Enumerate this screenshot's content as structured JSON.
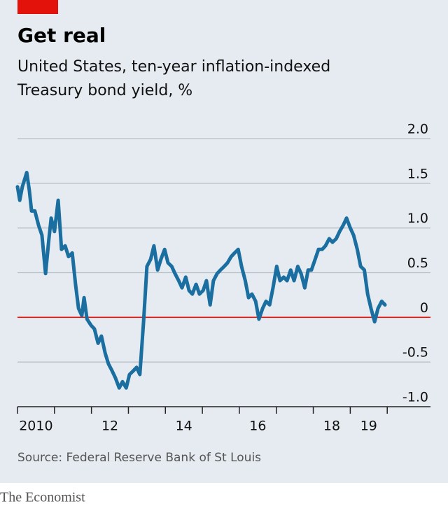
{
  "chart_data": {
    "type": "line",
    "title": "Get real",
    "subtitle": [
      "United States, ten-year inflation-indexed",
      "Treasury bond yield, %"
    ],
    "source": "Source: Federal Reserve Bank of St Louis",
    "brand": "The Economist",
    "xlim": [
      2010,
      2021.17
    ],
    "ylim": [
      -1.0,
      2.0
    ],
    "yticks": [
      {
        "value": 2,
        "label": "2.0"
      },
      1.5,
      {
        "value": 1,
        "label": "1.0"
      },
      0.5,
      0,
      -0.5,
      {
        "value": -1,
        "label": "-1.0"
      }
    ],
    "xticks": [
      2010,
      2011,
      2012,
      2013,
      2014,
      2015,
      2016,
      2017,
      2018,
      2019,
      2020
    ],
    "xtick_labels": [
      {
        "value": 2010.5,
        "label": "2010"
      },
      {
        "value": 2012.5,
        "label": "12"
      },
      {
        "value": 2014.5,
        "label": "14"
      },
      {
        "value": 2016.5,
        "label": "16"
      },
      {
        "value": 2018.5,
        "label": "18"
      },
      {
        "value": 2019.5,
        "label": "19"
      }
    ],
    "grid": true,
    "zero_line_color": "#e3120b",
    "x": [
      2010.0,
      2010.06,
      2010.13,
      2010.25,
      2010.32,
      2010.38,
      2010.47,
      2010.57,
      2010.66,
      2010.76,
      2010.85,
      2010.91,
      2011.0,
      2011.1,
      2011.19,
      2011.29,
      2011.38,
      2011.48,
      2011.57,
      2011.65,
      2011.74,
      2011.8,
      2011.88,
      2011.99,
      2012.08,
      2012.18,
      2012.27,
      2012.37,
      2012.46,
      2012.56,
      2012.65,
      2012.75,
      2012.84,
      2012.94,
      2013.03,
      2013.13,
      2013.22,
      2013.31,
      2013.41,
      2013.5,
      2013.6,
      2013.69,
      2013.79,
      2013.88,
      2013.98,
      2014.07,
      2014.17,
      2014.26,
      2014.36,
      2014.45,
      2014.55,
      2014.64,
      2014.73,
      2014.83,
      2014.92,
      2015.02,
      2015.11,
      2015.21,
      2015.3,
      2015.4,
      2015.49,
      2015.59,
      2015.68,
      2015.78,
      2015.87,
      2015.97,
      2016.06,
      2016.16,
      2016.25,
      2016.34,
      2016.44,
      2016.53,
      2016.63,
      2016.72,
      2016.82,
      2016.91,
      2017.01,
      2017.1,
      2017.2,
      2017.29,
      2017.39,
      2017.48,
      2017.58,
      2017.67,
      2017.77,
      2017.86,
      2017.95,
      2018.05,
      2018.14,
      2018.24,
      2018.33,
      2018.43,
      2018.52,
      2018.62,
      2018.71,
      2018.81,
      2018.9,
      2019.0,
      2019.09,
      2019.19,
      2019.28,
      2019.38,
      2019.47,
      2019.56,
      2019.66,
      2019.75,
      2019.85,
      2019.94
    ],
    "series": [
      {
        "name": "Yield",
        "color": "#1a6ea0",
        "values": [
          1.46,
          1.31,
          1.46,
          1.62,
          1.42,
          1.19,
          1.19,
          1.03,
          0.92,
          0.49,
          0.88,
          1.11,
          0.96,
          1.31,
          0.76,
          0.8,
          0.68,
          0.72,
          0.37,
          0.1,
          0.02,
          0.22,
          -0.02,
          -0.09,
          -0.13,
          -0.29,
          -0.21,
          -0.4,
          -0.52,
          -0.6,
          -0.68,
          -0.79,
          -0.72,
          -0.79,
          -0.64,
          -0.6,
          -0.56,
          -0.64,
          -0.05,
          0.57,
          0.65,
          0.8,
          0.53,
          0.65,
          0.76,
          0.61,
          0.57,
          0.49,
          0.41,
          0.33,
          0.45,
          0.3,
          0.26,
          0.37,
          0.26,
          0.3,
          0.41,
          0.14,
          0.41,
          0.49,
          0.53,
          0.57,
          0.61,
          0.68,
          0.72,
          0.76,
          0.57,
          0.41,
          0.22,
          0.26,
          0.18,
          -0.02,
          0.1,
          0.18,
          0.14,
          0.33,
          0.57,
          0.41,
          0.45,
          0.41,
          0.53,
          0.41,
          0.57,
          0.49,
          0.33,
          0.53,
          0.53,
          0.65,
          0.76,
          0.76,
          0.8,
          0.88,
          0.84,
          0.88,
          0.96,
          1.03,
          1.11,
          1.0,
          0.92,
          0.76,
          0.57,
          0.53,
          0.26,
          0.1,
          -0.05,
          0.1,
          0.18,
          0.14
        ]
      }
    ]
  }
}
